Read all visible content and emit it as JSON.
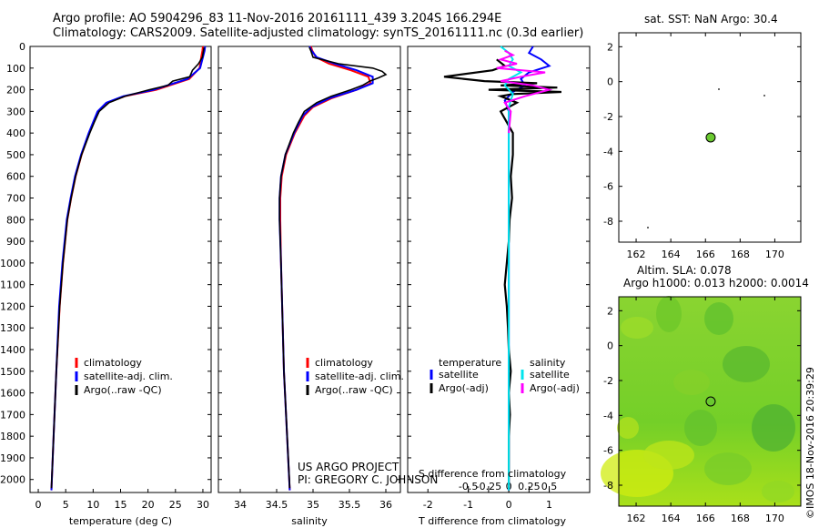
{
  "header": {
    "title_line1": "Argo profile: AO 5904296_83 11-Nov-2016 20161111_439 3.204S 166.294E",
    "title_line2": "Climatology: CARS2009. Satellite-adjusted climatology: synTS_20161111.nc (0.3d earlier)"
  },
  "credits": {
    "project": "US ARGO PROJECT",
    "pi": "PI: GREGORY C. JOHNSON",
    "imos": "©IMOS 18-Nov-2016 20:39:29"
  },
  "colors": {
    "climatology": "#ff0000",
    "satellite": "#0000ff",
    "argo": "#000000",
    "sal_satellite": "#00e5ee",
    "sal_argo": "#ff00ff",
    "marker": "#6ac930",
    "sla_green": "#7ed321",
    "sla_yellow": "#d7f000"
  },
  "chart_data": [
    {
      "id": "temperature",
      "type": "line",
      "xlabel": "temperature (deg C)",
      "ylabel": "",
      "xlim": [
        -1.5,
        31.5
      ],
      "ylim": [
        2060,
        0
      ],
      "xticks": [
        0,
        5,
        10,
        15,
        20,
        25,
        30
      ],
      "yticks": [
        0,
        100,
        200,
        300,
        400,
        500,
        600,
        700,
        800,
        900,
        1000,
        1100,
        1200,
        1300,
        1400,
        1500,
        1600,
        1700,
        1800,
        1900,
        2000
      ],
      "legend": [
        "climatology",
        "satellite-adj. clim.",
        "Argo(..raw -QC)"
      ],
      "series": [
        {
          "name": "climatology",
          "color": "#ff0000",
          "y": [
            0,
            20,
            50,
            100,
            150,
            200,
            230,
            260,
            300,
            350,
            400,
            500,
            600,
            700,
            800,
            1000,
            1200,
            1500,
            1800,
            2050
          ],
          "x": [
            30.0,
            29.9,
            29.7,
            29.4,
            27.5,
            21.5,
            15.8,
            12.6,
            10.9,
            10.1,
            9.3,
            7.9,
            6.8,
            6.0,
            5.3,
            4.5,
            3.9,
            3.3,
            2.8,
            2.4
          ]
        },
        {
          "name": "satellite-adj. clim.",
          "color": "#0000ff",
          "y": [
            0,
            20,
            50,
            100,
            150,
            200,
            230,
            260,
            300,
            350,
            400,
            500,
            600,
            700,
            800,
            1000,
            1200,
            1500,
            1800,
            2050
          ],
          "x": [
            30.4,
            30.3,
            30.0,
            29.5,
            27.2,
            21.0,
            15.5,
            12.4,
            10.8,
            10.0,
            9.2,
            7.8,
            6.7,
            5.9,
            5.2,
            4.4,
            3.8,
            3.3,
            2.8,
            2.4
          ]
        },
        {
          "name": "Argo(..raw -QC)",
          "color": "#000000",
          "y": [
            5,
            20,
            50,
            80,
            110,
            140,
            160,
            180,
            200,
            230,
            260,
            300,
            350,
            400,
            500,
            600,
            700,
            800,
            1000,
            1200,
            1500,
            1800,
            2040
          ],
          "x": [
            30.2,
            30.1,
            29.9,
            29.2,
            28.1,
            27.6,
            24.5,
            23.6,
            20.2,
            15.8,
            12.9,
            11.1,
            10.2,
            9.4,
            7.9,
            6.8,
            6.0,
            5.3,
            4.5,
            3.9,
            3.3,
            2.8,
            2.4
          ]
        }
      ]
    },
    {
      "id": "salinity",
      "type": "line",
      "xlabel": "salinity",
      "ylabel": "",
      "xlim": [
        33.7,
        36.2
      ],
      "ylim": [
        2060,
        0
      ],
      "xticks": [
        34,
        34.5,
        35,
        35.5,
        36
      ],
      "legend": [
        "climatology",
        "satellite-adj. clim.",
        "Argo(..raw -QC)"
      ],
      "series": [
        {
          "name": "climatology",
          "color": "#ff0000",
          "y": [
            0,
            20,
            50,
            80,
            110,
            140,
            170,
            200,
            240,
            280,
            320,
            400,
            500,
            600,
            700,
            800,
            1000,
            1500,
            2050
          ],
          "x": [
            34.97,
            34.99,
            35.04,
            35.22,
            35.52,
            35.76,
            35.79,
            35.6,
            35.25,
            35.0,
            34.88,
            34.75,
            34.63,
            34.57,
            34.55,
            34.55,
            34.56,
            34.6,
            34.68
          ]
        },
        {
          "name": "satellite-adj. clim.",
          "color": "#0000ff",
          "y": [
            0,
            20,
            50,
            80,
            110,
            140,
            170,
            200,
            240,
            280,
            320,
            400,
            500,
            600,
            700,
            800,
            1000,
            1500,
            2050
          ],
          "x": [
            34.95,
            34.98,
            35.05,
            35.3,
            35.6,
            35.82,
            35.82,
            35.6,
            35.22,
            34.98,
            34.86,
            34.74,
            34.62,
            34.56,
            34.54,
            34.54,
            34.56,
            34.6,
            34.68
          ]
        },
        {
          "name": "Argo(..raw -QC)",
          "color": "#000000",
          "y": [
            5,
            20,
            50,
            80,
            100,
            115,
            130,
            145,
            160,
            180,
            200,
            230,
            260,
            300,
            350,
            400,
            500,
            600,
            700,
            800,
            1000,
            1500,
            2040
          ],
          "x": [
            34.95,
            34.97,
            35.0,
            35.35,
            35.82,
            35.95,
            36.0,
            35.9,
            35.78,
            35.68,
            35.52,
            35.25,
            35.05,
            34.88,
            34.8,
            34.73,
            34.62,
            34.56,
            34.54,
            34.54,
            34.56,
            34.6,
            34.68
          ]
        }
      ]
    },
    {
      "id": "difference",
      "type": "line",
      "xlabel": "T difference from climatology",
      "xlabel2": "S difference from climatology",
      "xlim": [
        -2.5,
        2.0
      ],
      "ylim": [
        2060,
        0
      ],
      "xticks_bottom": [
        -2,
        -1,
        0,
        1
      ],
      "xticks_top_labels": [
        "-0.5",
        "-0.25",
        "0",
        "0.25",
        "0.5"
      ],
      "xticks_top": [
        -1.0,
        -0.5,
        0.0,
        0.5,
        1.0
      ],
      "legend_temperature_title": "temperature",
      "legend_salinity_title": "salinity",
      "legend": [
        "satellite",
        "Argo(-adj)",
        "satellite",
        "Argo(-adj)"
      ],
      "series": [
        {
          "name": "T satellite",
          "color": "#0000ff",
          "y": [
            0,
            30,
            60,
            90,
            120,
            150,
            180,
            210,
            250,
            300,
            400,
            600,
            1000,
            2050
          ],
          "x": [
            0.6,
            0.5,
            0.8,
            1.0,
            0.5,
            0.3,
            0.4,
            0.1,
            -0.1,
            0.0,
            0.0,
            0.0,
            0.0,
            0.0
          ]
        },
        {
          "name": "T Argo(-adj)",
          "color": "#000000",
          "y": [
            60,
            90,
            110,
            140,
            160,
            170,
            180,
            190,
            200,
            210,
            220,
            230,
            260,
            300,
            400,
            500,
            600,
            700,
            800,
            900,
            1000,
            1100,
            1200,
            1300,
            1400,
            1500,
            1600,
            1700,
            1800,
            1900,
            2040
          ],
          "x": [
            -0.3,
            -0.1,
            -0.4,
            -1.6,
            -0.6,
            0.7,
            -0.2,
            1.2,
            -0.5,
            1.3,
            0.1,
            -0.2,
            0.2,
            -0.2,
            0.1,
            0.1,
            0.05,
            0.08,
            0.02,
            0.0,
            -0.05,
            -0.1,
            -0.05,
            -0.02,
            0.0,
            0.05,
            0.0,
            0.03,
            0.0,
            0.0,
            0.0
          ]
        },
        {
          "name": "S satellite",
          "color": "#00e5ee",
          "y": [
            0,
            30,
            60,
            90,
            120,
            150,
            180,
            220,
            280,
            400,
            600,
            1000,
            2050
          ],
          "x": [
            -0.2,
            0.0,
            0.1,
            0.0,
            0.3,
            0.0,
            -0.1,
            0.1,
            0.0,
            0.0,
            0.0,
            0.0,
            0.0
          ]
        },
        {
          "name": "S Argo(-adj)",
          "color": "#ff00ff",
          "y": [
            20,
            40,
            60,
            80,
            100,
            120,
            140,
            160,
            180,
            200,
            230,
            260,
            300,
            400
          ],
          "x": [
            -0.1,
            0.1,
            -0.2,
            0.2,
            -0.3,
            0.9,
            0.3,
            -0.2,
            0.6,
            1.0,
            0.4,
            -0.1,
            0.05,
            0.0
          ]
        }
      ]
    },
    {
      "id": "sst_map",
      "type": "scatter",
      "title": "sat. SST: NaN  Argo: 30.4",
      "xlim": [
        161,
        171.5
      ],
      "ylim": [
        -9.2,
        2.8
      ],
      "xticks": [
        162,
        164,
        166,
        168,
        170
      ],
      "yticks": [
        2,
        0,
        -2,
        -4,
        -6,
        -8
      ],
      "points": [
        {
          "x": 166.3,
          "y": -3.2,
          "label": "Argo"
        }
      ]
    },
    {
      "id": "sla_map",
      "type": "heatmap",
      "title": "Altim. SLA: 0.078",
      "subtitle": "Argo h1000: 0.013 h2000: 0.0014",
      "xlim": [
        161,
        171.5
      ],
      "ylim": [
        -9.2,
        2.8
      ],
      "xticks": [
        162,
        164,
        166,
        168,
        170
      ],
      "yticks": [
        2,
        0,
        -2,
        -4,
        -6,
        -8
      ],
      "points": [
        {
          "x": 166.3,
          "y": -3.2,
          "label": "Argo"
        }
      ]
    }
  ]
}
